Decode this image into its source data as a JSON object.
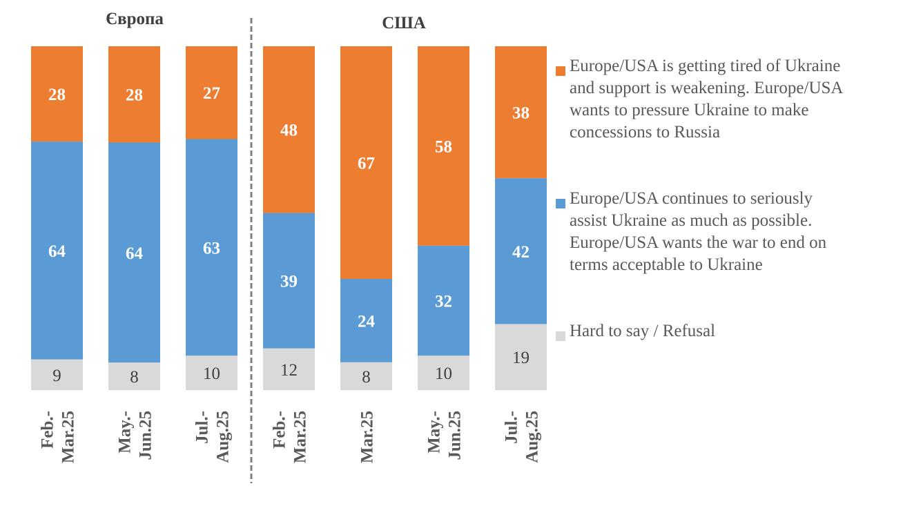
{
  "chart_data": {
    "type": "bar",
    "stacked": "percent",
    "groups": [
      {
        "title": "Європа",
        "categories": [
          "Feb.-\nMar.25",
          "May.-\nJun.25",
          "Jul.-\nAug.25"
        ]
      },
      {
        "title": "США",
        "categories": [
          "Feb.-\nMar.25",
          "Mar.25",
          "May.-\nJun.25",
          "Jul.-\nAug.25"
        ]
      }
    ],
    "categories": [
      [
        "Feb.-",
        "Mar.25"
      ],
      [
        "May.-",
        "Jun.25"
      ],
      [
        "Jul.-",
        "Aug.25"
      ],
      [
        "Feb.-",
        "Mar.25"
      ],
      [
        "Mar.25"
      ],
      [
        "May.-",
        "Jun.25"
      ],
      [
        "Jul.-",
        "Aug.25"
      ]
    ],
    "series": [
      {
        "name": "Hard to say / Refusal",
        "color": "#d9d9d9",
        "label_color": "#404040",
        "label_bold": false,
        "values": [
          9,
          8,
          10,
          12,
          8,
          10,
          19
        ]
      },
      {
        "name": "Europe/USA continues to seriously assist Ukraine as much as possible. Europe/USA wants the war to end on terms acceptable to Ukraine",
        "color": "#5b9bd5",
        "label_color": "#ffffff",
        "label_bold": true,
        "values": [
          64,
          64,
          63,
          39,
          24,
          32,
          42
        ]
      },
      {
        "name": "Europe/USA is getting tired of Ukraine and support is weakening. Europe/USA wants to pressure Ukraine to make concessions to Russia",
        "color": "#ed7d31",
        "label_color": "#ffffff",
        "label_bold": true,
        "values": [
          28,
          28,
          27,
          48,
          67,
          58,
          38
        ]
      }
    ],
    "legend": {
      "position": "right",
      "order": [
        2,
        1,
        0
      ],
      "lines": [
        [
          "Europe/USA is getting tired of Ukraine",
          "and support is weakening. Europe/USA",
          "wants to pressure Ukraine to make",
          "concessions to Russia"
        ],
        [
          "Europe/USA continues to seriously",
          "assist Ukraine as much as possible.",
          "Europe/USA wants the war to end on",
          "terms acceptable to Ukraine"
        ],
        [
          "Hard to say / Refusal"
        ]
      ]
    },
    "title": "",
    "xlabel": "",
    "ylabel": "",
    "ylim": [
      0,
      100
    ],
    "grid": false,
    "group_divider": "dashed",
    "divider_color": "#7f7f7f"
  },
  "group_titles": [
    "Європа",
    "США"
  ]
}
